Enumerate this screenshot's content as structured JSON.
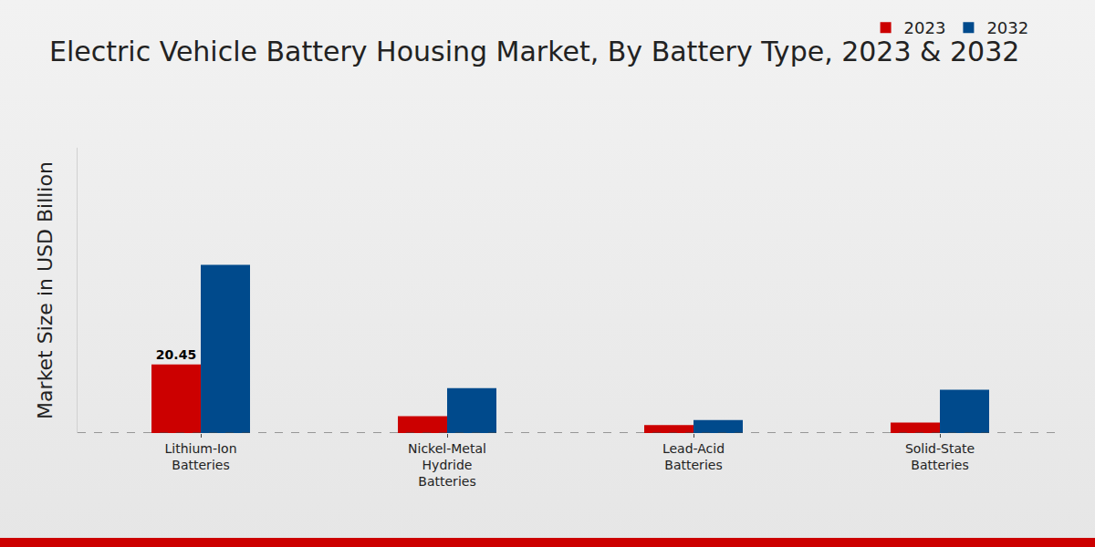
{
  "chart_data": {
    "type": "bar",
    "title": "Electric Vehicle Battery Housing Market, By Battery Type, 2023 & 2032",
    "y_label": "Market Size in USD Billion",
    "categories": [
      "Lithium-Ion Batteries",
      "Nickel-Metal Hydride Batteries",
      "Lead-Acid Batteries",
      "Solid-State Batteries"
    ],
    "series": [
      {
        "name": "2023",
        "color": "#cc0000",
        "values": [
          20.45,
          5.0,
          2.4,
          3.1
        ],
        "value_labels": [
          "20.45",
          null,
          null,
          null
        ]
      },
      {
        "name": "2032",
        "color": "#004a8c",
        "values": [
          50.1,
          13.4,
          3.9,
          12.9
        ]
      }
    ],
    "ylim": [
      0,
      85
    ],
    "tick_labels": "x",
    "grid": false,
    "legend": "top right"
  }
}
